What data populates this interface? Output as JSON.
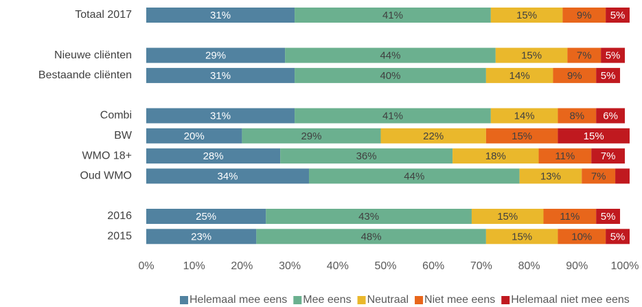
{
  "chart_data": {
    "type": "hbar_stacked",
    "categories": [
      "Totaal 2017",
      null,
      "Nieuwe cliënten",
      "Bestaande cliënten",
      null,
      "Combi",
      "BW",
      "WMO 18+",
      "Oud WMO",
      null,
      "2016",
      "2015"
    ],
    "series": [
      {
        "name": "Helemaal mee eens",
        "color": "#5182a0",
        "values": [
          31,
          null,
          29,
          31,
          null,
          31,
          20,
          28,
          34,
          null,
          25,
          23
        ],
        "value_labels": [
          "31%",
          null,
          "29%",
          "31%",
          null,
          "31%",
          "20%",
          "28%",
          "34%",
          null,
          "25%",
          "23%"
        ]
      },
      {
        "name": "Mee eens",
        "color": "#6bb08f",
        "values": [
          41,
          null,
          44,
          40,
          null,
          41,
          29,
          36,
          44,
          null,
          43,
          48
        ],
        "value_labels": [
          "41%",
          null,
          "44%",
          "40%",
          null,
          "41%",
          "29%",
          "36%",
          "44%",
          null,
          "43%",
          "48%"
        ]
      },
      {
        "name": "Neutraal",
        "color": "#eab82c",
        "values": [
          15,
          null,
          15,
          14,
          null,
          14,
          22,
          18,
          13,
          null,
          15,
          15
        ],
        "value_labels": [
          "15%",
          null,
          "15%",
          "14%",
          null,
          "14%",
          "22%",
          "18%",
          "13%",
          null,
          "15%",
          "15%"
        ]
      },
      {
        "name": "Niet mee eens",
        "color": "#e8661b",
        "values": [
          9,
          null,
          7,
          9,
          null,
          8,
          15,
          11,
          7,
          null,
          11,
          10
        ],
        "value_labels": [
          "9%",
          null,
          "7%",
          "9%",
          null,
          "8%",
          "15%",
          "11%",
          "7%",
          null,
          "11%",
          "10%"
        ]
      },
      {
        "name": "Helemaal niet mee eens",
        "color": "#c0191f",
        "values": [
          5,
          null,
          5,
          5,
          null,
          6,
          15,
          7,
          3,
          null,
          5,
          5
        ],
        "value_labels": [
          "5%",
          null,
          "5%",
          "5%",
          null,
          "6%",
          "15%",
          "7%",
          null,
          null,
          "5%",
          "5%"
        ]
      }
    ],
    "xlim": [
      0,
      100
    ],
    "xticks": [
      {
        "value": 0,
        "label": "0%"
      },
      {
        "value": 10,
        "label": "10%"
      },
      {
        "value": 20,
        "label": "20%"
      },
      {
        "value": 30,
        "label": "30%"
      },
      {
        "value": 40,
        "label": "40%"
      },
      {
        "value": 50,
        "label": "50%"
      },
      {
        "value": 60,
        "label": "60%"
      },
      {
        "value": 70,
        "label": "70%"
      },
      {
        "value": 80,
        "label": "80%"
      },
      {
        "value": 90,
        "label": "90%"
      },
      {
        "value": 100,
        "label": "100%"
      }
    ],
    "legend": "bottom"
  }
}
